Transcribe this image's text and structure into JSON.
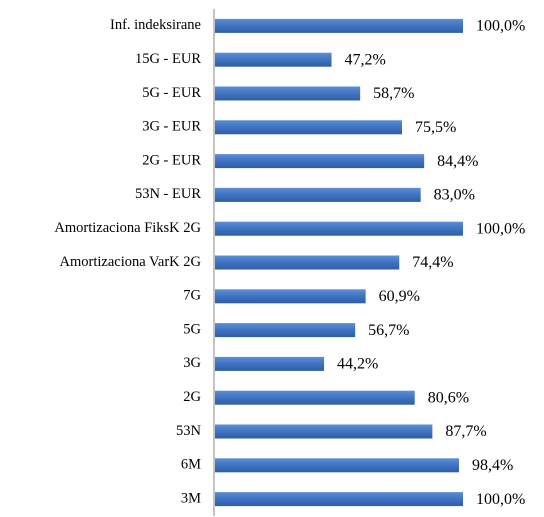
{
  "chart_data": {
    "type": "bar",
    "orientation": "horizontal",
    "color": "#3f72c0",
    "categories": [
      "Inf. indeksirane",
      "15G - EUR",
      "5G - EUR",
      "3G - EUR",
      "2G - EUR",
      "53N - EUR",
      "Amortizaciona FiksK 2G",
      "Amortizaciona VarK 2G",
      "7G",
      "5G",
      "3G",
      "2G",
      "53N",
      "6M",
      "3M"
    ],
    "values": [
      100.0,
      47.2,
      58.7,
      75.5,
      84.4,
      83.0,
      100.0,
      74.4,
      60.9,
      56.7,
      44.2,
      80.6,
      87.7,
      98.4,
      100.0
    ],
    "value_labels": [
      "100,0%",
      "47,2%",
      "58,7%",
      "75,5%",
      "84,4%",
      "83,0%",
      "100,0%",
      "74,4%",
      "60,9%",
      "56,7%",
      "44,2%",
      "80,6%",
      "87,7%",
      "98,4%",
      "100,0%"
    ]
  }
}
